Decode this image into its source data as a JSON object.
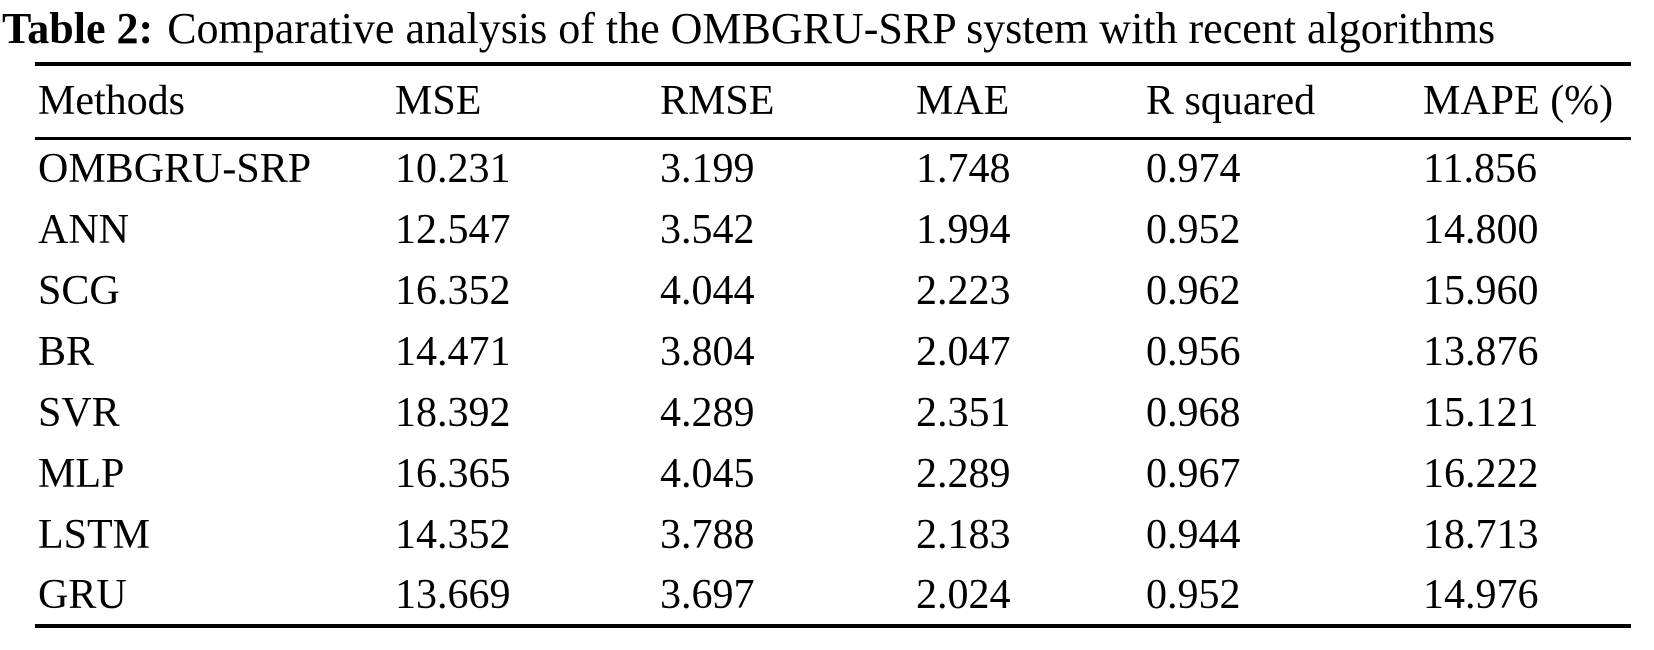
{
  "caption": {
    "label": "Table 2:",
    "text": "Comparative analysis of the OMBGRU-SRP system with recent algorithms"
  },
  "table": {
    "columns": [
      "Methods",
      "MSE",
      "RMSE",
      "MAE",
      "R squared",
      "MAPE (%)"
    ],
    "rows": [
      [
        "OMBGRU-SRP",
        "10.231",
        "3.199",
        "1.748",
        "0.974",
        "11.856"
      ],
      [
        "ANN",
        "12.547",
        "3.542",
        "1.994",
        "0.952",
        "14.800"
      ],
      [
        "SCG",
        "16.352",
        "4.044",
        "2.223",
        "0.962",
        "15.960"
      ],
      [
        "BR",
        "14.471",
        "3.804",
        "2.047",
        "0.956",
        "13.876"
      ],
      [
        "SVR",
        "18.392",
        "4.289",
        "2.351",
        "0.968",
        "15.121"
      ],
      [
        "MLP",
        "16.365",
        "4.045",
        "2.289",
        "0.967",
        "16.222"
      ],
      [
        "LSTM",
        "14.352",
        "3.788",
        "2.183",
        "0.944",
        "18.713"
      ],
      [
        "GRU",
        "13.669",
        "3.697",
        "2.024",
        "0.952",
        "14.976"
      ]
    ]
  },
  "colors": {
    "text": "#000000",
    "background": "#ffffff",
    "rule": "#000000"
  },
  "chart_data": {
    "type": "table",
    "title": "Table 2: Comparative analysis of the OMBGRU-SRP system with recent algorithms",
    "columns": [
      "Methods",
      "MSE",
      "RMSE",
      "MAE",
      "R squared",
      "MAPE (%)"
    ],
    "rows": [
      {
        "method": "OMBGRU-SRP",
        "MSE": 10.231,
        "RMSE": 3.199,
        "MAE": 1.748,
        "R_squared": 0.974,
        "MAPE_pct": 11.856
      },
      {
        "method": "ANN",
        "MSE": 12.547,
        "RMSE": 3.542,
        "MAE": 1.994,
        "R_squared": 0.952,
        "MAPE_pct": 14.8
      },
      {
        "method": "SCG",
        "MSE": 16.352,
        "RMSE": 4.044,
        "MAE": 2.223,
        "R_squared": 0.962,
        "MAPE_pct": 15.96
      },
      {
        "method": "BR",
        "MSE": 14.471,
        "RMSE": 3.804,
        "MAE": 2.047,
        "R_squared": 0.956,
        "MAPE_pct": 13.876
      },
      {
        "method": "SVR",
        "MSE": 18.392,
        "RMSE": 4.289,
        "MAE": 2.351,
        "R_squared": 0.968,
        "MAPE_pct": 15.121
      },
      {
        "method": "MLP",
        "MSE": 16.365,
        "RMSE": 4.045,
        "MAE": 2.289,
        "R_squared": 0.967,
        "MAPE_pct": 16.222
      },
      {
        "method": "LSTM",
        "MSE": 14.352,
        "RMSE": 3.788,
        "MAE": 2.183,
        "R_squared": 0.944,
        "MAPE_pct": 18.713
      },
      {
        "method": "GRU",
        "MSE": 13.669,
        "RMSE": 3.697,
        "MAE": 2.024,
        "R_squared": 0.952,
        "MAPE_pct": 14.976
      }
    ]
  }
}
